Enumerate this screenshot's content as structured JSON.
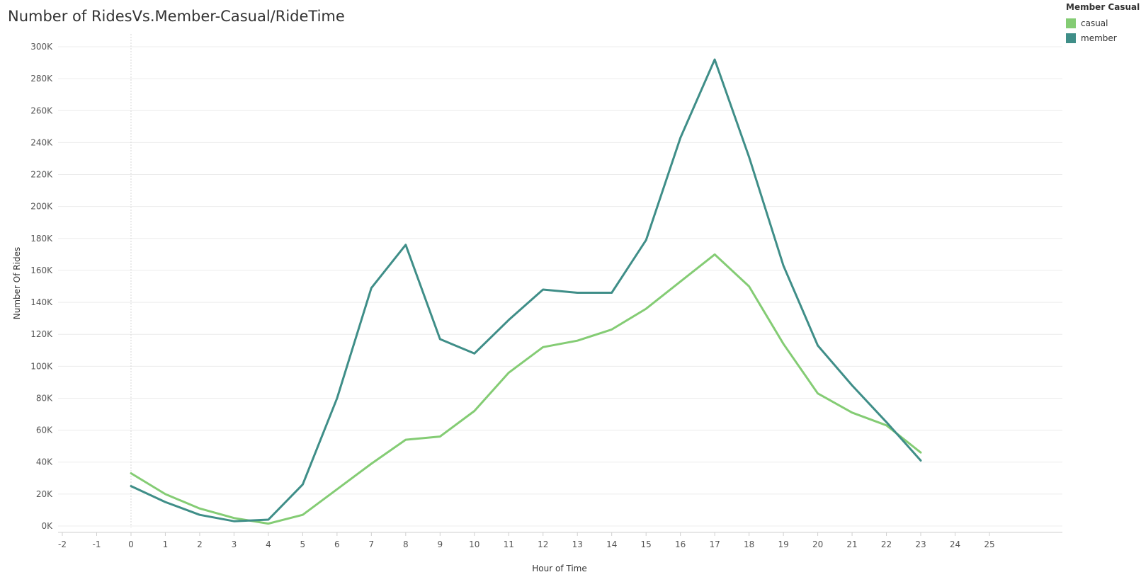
{
  "chart_data": {
    "type": "line",
    "title": "Number of RidesVs.Member-Casual/RideTime",
    "xlabel": "Hour of Time",
    "ylabel": "Number Of Rides",
    "xlim": [
      -2,
      25
    ],
    "ylim": [
      0,
      300000
    ],
    "x_ticks": [
      "-2",
      "-1",
      "0",
      "1",
      "2",
      "3",
      "4",
      "5",
      "6",
      "7",
      "8",
      "9",
      "10",
      "11",
      "12",
      "13",
      "14",
      "15",
      "16",
      "17",
      "18",
      "19",
      "20",
      "21",
      "22",
      "23",
      "24",
      "25"
    ],
    "y_ticks": [
      "0K",
      "20K",
      "40K",
      "60K",
      "80K",
      "100K",
      "120K",
      "140K",
      "160K",
      "180K",
      "200K",
      "220K",
      "240K",
      "260K",
      "280K",
      "300K"
    ],
    "y_tick_values": [
      0,
      20000,
      40000,
      60000,
      80000,
      100000,
      120000,
      140000,
      160000,
      180000,
      200000,
      220000,
      240000,
      260000,
      280000,
      300000
    ],
    "x": [
      0,
      1,
      2,
      3,
      4,
      5,
      6,
      7,
      8,
      9,
      10,
      11,
      12,
      13,
      14,
      15,
      16,
      17,
      18,
      19,
      20,
      21,
      22,
      23
    ],
    "grid": "horizontal",
    "legend": {
      "title": "Member Casual",
      "placement": "top-right"
    },
    "series": [
      {
        "name": "casual",
        "color": "#84cc74",
        "values": [
          33000,
          20000,
          11000,
          5000,
          1500,
          7000,
          23000,
          39000,
          54000,
          56000,
          72000,
          96000,
          112000,
          116000,
          123000,
          136000,
          153000,
          170000,
          150000,
          114000,
          83000,
          71000,
          63000,
          46000
        ]
      },
      {
        "name": "member",
        "color": "#3f8e88",
        "values": [
          25000,
          15000,
          7000,
          3000,
          4000,
          26000,
          80000,
          149000,
          176000,
          117000,
          108000,
          129000,
          148000,
          146000,
          146000,
          179000,
          243000,
          292000,
          231000,
          163000,
          113000,
          88000,
          65000,
          41000
        ]
      }
    ]
  }
}
